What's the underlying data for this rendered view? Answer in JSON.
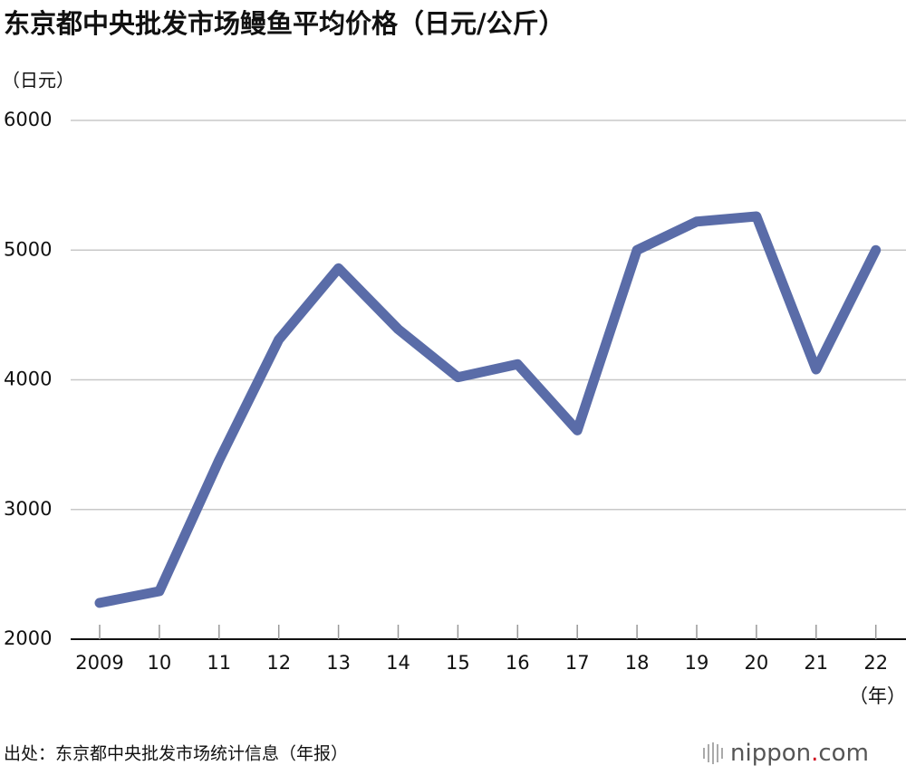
{
  "chart_data": {
    "type": "line",
    "title": "东京都中央批发市场鳗鱼平均价格（日元/公斤）",
    "y_unit": "（日元）",
    "x_unit": "（年）",
    "source": "出处：东京都中央批发市场统计信息（年报）",
    "brand": [
      "nippon",
      ".",
      "com"
    ],
    "categories": [
      "2009",
      "10",
      "11",
      "12",
      "13",
      "14",
      "15",
      "16",
      "17",
      "18",
      "19",
      "20",
      "21",
      "22"
    ],
    "series": [
      {
        "name": "鳗鱼平均价格",
        "color": "#5a6ca8",
        "values": [
          2280,
          2370,
          3380,
          4310,
          4860,
          4390,
          4020,
          4120,
          3610,
          5000,
          5220,
          5260,
          4080,
          5000
        ]
      }
    ],
    "ylim": [
      2000,
      6000
    ],
    "yticks": [
      2000,
      3000,
      4000,
      5000,
      6000
    ],
    "grid": true
  }
}
